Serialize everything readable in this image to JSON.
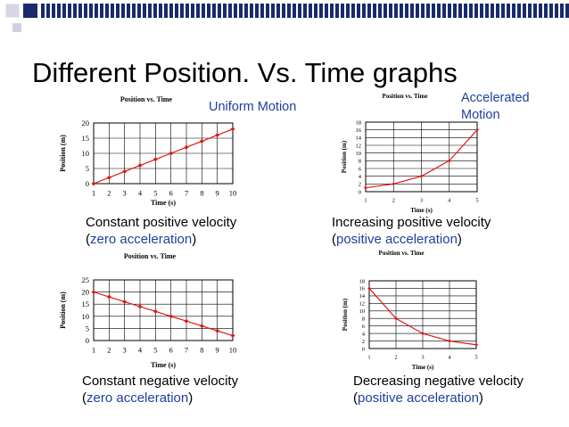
{
  "slide": {
    "title": "Different Position. Vs. Time graphs",
    "colors": {
      "accent_blue": "#1f3f9f",
      "data_red": "#e01818",
      "deco_navy": "#1a2a6c"
    }
  },
  "annotations": {
    "uniform": "Uniform Motion",
    "accelerated_line1": "Accelerated",
    "accelerated_line2": "Motion"
  },
  "captions": [
    {
      "line1": "Constant positive velocity",
      "pre": "(",
      "highlight": "zero acceleration",
      "post": ")"
    },
    {
      "line1": "Increasing positive velocity",
      "pre": "(",
      "highlight": "positive acceleration",
      "post": ")"
    },
    {
      "line1": "Constant negative velocity",
      "pre": "(",
      "highlight": "zero acceleration",
      "post": ")"
    },
    {
      "line1": "Decreasing negative velocity",
      "pre": "(",
      "highlight": "positive acceleration",
      "post": ")"
    }
  ],
  "chart_data": [
    {
      "type": "line",
      "title": "Position vs. Time",
      "xlabel": "Time (s)",
      "ylabel": "Position (m)",
      "x": [
        1,
        2,
        3,
        4,
        5,
        6,
        7,
        8,
        9,
        10
      ],
      "y": [
        0,
        2,
        4,
        6,
        8,
        10,
        12,
        14,
        16,
        18
      ],
      "xlim": [
        1,
        10
      ],
      "ylim": [
        0,
        20
      ],
      "xticks": [
        1,
        2,
        3,
        4,
        5,
        6,
        7,
        8,
        9,
        10
      ],
      "yticks": [
        0,
        5,
        10,
        15,
        20
      ],
      "grid": true,
      "legend": "none"
    },
    {
      "type": "line",
      "title": "Position vs. Time",
      "xlabel": "Time (s)",
      "ylabel": "Position (m)",
      "x": [
        1,
        2,
        3,
        4,
        5
      ],
      "y": [
        1,
        2,
        4,
        8,
        16
      ],
      "xlim": [
        1,
        5
      ],
      "ylim": [
        0,
        18
      ],
      "xticks": [
        1,
        2,
        3,
        4,
        5
      ],
      "yticks": [
        0,
        2,
        4,
        6,
        8,
        10,
        12,
        14,
        16,
        18
      ],
      "grid": true,
      "legend": "none"
    },
    {
      "type": "line",
      "title": "Position vs. Time",
      "xlabel": "Time (s)",
      "ylabel": "Position (m)",
      "x": [
        1,
        2,
        3,
        4,
        5,
        6,
        7,
        8,
        9,
        10
      ],
      "y": [
        20,
        18,
        16,
        14,
        12,
        10,
        8,
        6,
        4,
        2
      ],
      "xlim": [
        1,
        10
      ],
      "ylim": [
        0,
        25
      ],
      "xticks": [
        1,
        2,
        3,
        4,
        5,
        6,
        7,
        8,
        9,
        10
      ],
      "yticks": [
        0,
        5,
        10,
        15,
        20,
        25
      ],
      "grid": true,
      "legend": "none"
    },
    {
      "type": "line",
      "title": "Position vs. Time",
      "xlabel": "Time (s)",
      "ylabel": "Position (m)",
      "x": [
        1,
        2,
        3,
        4,
        5
      ],
      "y": [
        16,
        8,
        4,
        2,
        1
      ],
      "xlim": [
        1,
        5
      ],
      "ylim": [
        0,
        18
      ],
      "xticks": [
        1,
        2,
        3,
        4,
        5
      ],
      "yticks": [
        0,
        2,
        4,
        6,
        8,
        10,
        12,
        14,
        16,
        18
      ],
      "grid": true,
      "legend": "none"
    }
  ]
}
